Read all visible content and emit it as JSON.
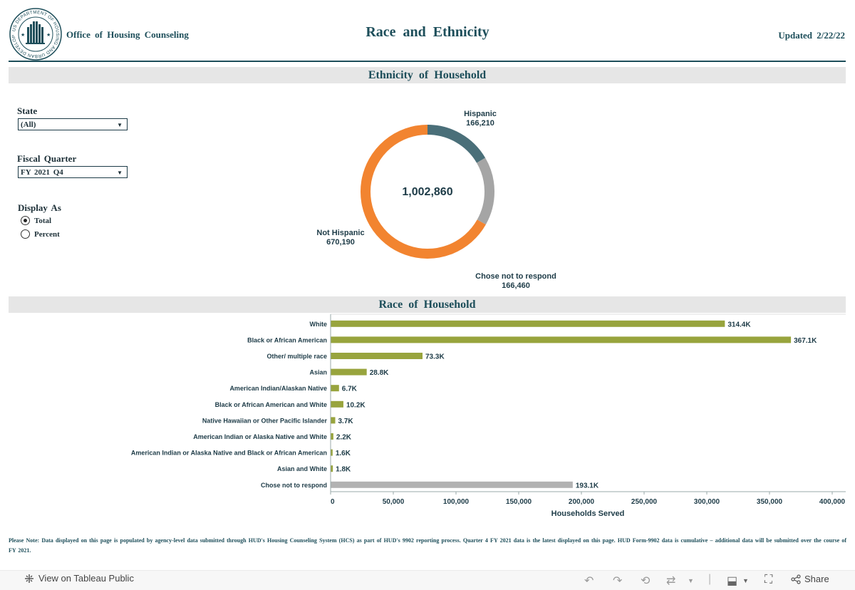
{
  "header": {
    "agency": "Office of Housing Counseling",
    "title": "Race and Ethnicity",
    "updated": "Updated 2/22/22",
    "seal_text": "US DEPARTMENT OF HOUSING AND URBAN DEVELOPMENT"
  },
  "ethnicity_section": {
    "title": "Ethnicity of Household"
  },
  "race_section": {
    "title": "Race of Household"
  },
  "filters": {
    "state": {
      "label": "State",
      "value": "(All)"
    },
    "fiscal_quarter": {
      "label": "Fiscal Quarter",
      "value": "FY 2021 Q4"
    },
    "display_as": {
      "label": "Display As",
      "options": [
        "Total",
        "Percent"
      ],
      "selected": "Total"
    }
  },
  "chart_data": [
    {
      "type": "pie",
      "subtype": "donut",
      "title": "Ethnicity of Household",
      "center_label": "1,002,860",
      "slices": [
        {
          "name": "Hispanic",
          "value": 166210,
          "label": "166,210",
          "color": "#4a6f79"
        },
        {
          "name": "Chose not to respond",
          "value": 166460,
          "label": "166,460",
          "color": "#a5a5a5"
        },
        {
          "name": "Not Hispanic",
          "value": 670190,
          "label": "670,190",
          "color": "#f28430"
        }
      ]
    },
    {
      "type": "bar",
      "orientation": "horizontal",
      "title": "Race of Household",
      "xlabel": "Households Served",
      "xlim": [
        0,
        400000
      ],
      "xticks": [
        0,
        50000,
        100000,
        150000,
        200000,
        250000,
        300000,
        350000,
        400000
      ],
      "xtick_labels": [
        "0",
        "50,000",
        "100,000",
        "150,000",
        "200,000",
        "250,000",
        "300,000",
        "350,000",
        "400,000"
      ],
      "categories": [
        "White",
        "Black or African American",
        "Other/ multiple race",
        "Asian",
        "American Indian/Alaskan Native",
        "Black or African American and White",
        "Native Hawaiian or Other Pacific Islander",
        "American Indian or Alaska Native and White",
        "American Indian or Alaska Native and Black or African American",
        "Asian and White",
        "Chose not to respond"
      ],
      "values": [
        314400,
        367100,
        73300,
        28800,
        6700,
        10200,
        3700,
        2200,
        1600,
        1800,
        193100
      ],
      "value_labels": [
        "314.4K",
        "367.1K",
        "73.3K",
        "28.8K",
        "6.7K",
        "10.2K",
        "3.7K",
        "2.2K",
        "1.6K",
        "1.8K",
        "193.1K"
      ],
      "colors": [
        "#98a43d",
        "#98a43d",
        "#98a43d",
        "#98a43d",
        "#98a43d",
        "#98a43d",
        "#98a43d",
        "#98a43d",
        "#98a43d",
        "#98a43d",
        "#b2b2b2"
      ]
    }
  ],
  "note": "Please Note: Data displayed on this page is populated by agency-level data submitted through HUD's Housing Counseling System (HCS) as part of HUD's 9902 reporting process. Quarter 4 FY 2021 data is the latest displayed on this page. HUD Form-9902 data is cumulative – additional data will be submitted over the course of FY 2021.",
  "footer": {
    "view_link": "View on Tableau Public",
    "share_label": "Share",
    "icons": [
      "undo-icon",
      "redo-icon",
      "revert-icon",
      "refresh-icon",
      "download-icon",
      "fullscreen-icon",
      "share-icon"
    ]
  }
}
